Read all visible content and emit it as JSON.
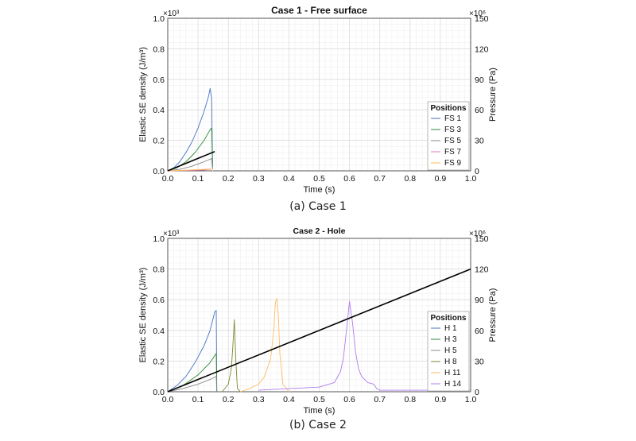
{
  "captions": [
    "(a) Case 1",
    "(b) Case 2"
  ],
  "chart_data": [
    {
      "type": "line",
      "title": "Case 1 - Free surface",
      "xlabel": "Time (s)",
      "ylabel": "Elastic SE density (J/m³)",
      "y2label": "Pressure (Pa)",
      "xlim": [
        0,
        1
      ],
      "ylim": [
        0,
        1
      ],
      "y2lim": [
        0,
        150
      ],
      "xticks": [
        "0.0",
        "0.1",
        "0.2",
        "0.3",
        "0.4",
        "0.5",
        "0.6",
        "0.7",
        "0.8",
        "0.9",
        "1.0"
      ],
      "yticks": [
        "0.0",
        "0.2",
        "0.4",
        "0.6",
        "0.8",
        "1.0"
      ],
      "y2ticks": [
        "0",
        "30",
        "60",
        "90",
        "120",
        "150"
      ],
      "y_multiplier": "×10³",
      "y2_multiplier": "×10⁶",
      "grid": true,
      "legend": {
        "title": "Positions",
        "placement": "right"
      },
      "series": [
        {
          "name": "FS 1",
          "color": "#4472c4",
          "x": [
            0,
            0.02,
            0.04,
            0.06,
            0.08,
            0.1,
            0.12,
            0.135,
            0.14,
            0.145,
            0.148
          ],
          "y": [
            0,
            0.02,
            0.06,
            0.12,
            0.19,
            0.28,
            0.39,
            0.49,
            0.54,
            0.48,
            0.03
          ]
        },
        {
          "name": "FS 3",
          "color": "#2e8b3a",
          "x": [
            0,
            0.03,
            0.06,
            0.09,
            0.12,
            0.14,
            0.145,
            0.148
          ],
          "y": [
            0,
            0.02,
            0.06,
            0.12,
            0.2,
            0.27,
            0.28,
            0.02
          ]
        },
        {
          "name": "FS 5",
          "color": "#888888",
          "x": [
            0,
            0.04,
            0.08,
            0.12,
            0.145,
            0.148
          ],
          "y": [
            0,
            0.01,
            0.03,
            0.06,
            0.08,
            0.01
          ]
        },
        {
          "name": "FS 7",
          "color": "#e377c2",
          "x": [
            0,
            0.12,
            0.14,
            0.148
          ],
          "y": [
            0,
            0.005,
            0.012,
            0.0
          ]
        },
        {
          "name": "FS 9",
          "color": "#ffbb55",
          "x": [
            0,
            0.06,
            0.1,
            0.14,
            0.148
          ],
          "y": [
            0,
            0.004,
            0.008,
            0.012,
            0.0
          ]
        },
        {
          "name": "",
          "color": "#000000",
          "axis": "right",
          "x": [
            0,
            0.155
          ],
          "y": [
            0,
            19
          ]
        }
      ]
    },
    {
      "type": "line",
      "title": "Case 2 - Hole",
      "xlabel": "Time (s)",
      "ylabel": "Elastic SE density (J/m³)",
      "y2label": "Pressure (Pa)",
      "xlim": [
        0,
        1
      ],
      "ylim": [
        0,
        1
      ],
      "y2lim": [
        0,
        150
      ],
      "xticks": [
        "0.0",
        "0.1",
        "0.2",
        "0.3",
        "0.4",
        "0.5",
        "0.6",
        "0.7",
        "0.8",
        "0.9",
        "1.0"
      ],
      "yticks": [
        "0.0",
        "0.2",
        "0.4",
        "0.6",
        "0.8",
        "1.0"
      ],
      "y2ticks": [
        "0",
        "30",
        "60",
        "90",
        "120",
        "150"
      ],
      "y_multiplier": "×10³",
      "y2_multiplier": "×10⁶",
      "grid": true,
      "legend": {
        "title": "Positions",
        "placement": "right"
      },
      "series": [
        {
          "name": "H 1",
          "color": "#4472c4",
          "x": [
            0,
            0.03,
            0.06,
            0.09,
            0.12,
            0.14,
            0.155,
            0.16,
            0.162
          ],
          "y": [
            0,
            0.04,
            0.1,
            0.19,
            0.3,
            0.4,
            0.52,
            0.53,
            0.0
          ]
        },
        {
          "name": "H 3",
          "color": "#2e8b3a",
          "x": [
            0,
            0.05,
            0.1,
            0.14,
            0.16,
            0.162
          ],
          "y": [
            0,
            0.04,
            0.11,
            0.19,
            0.25,
            0.0
          ]
        },
        {
          "name": "H 5",
          "color": "#888888",
          "x": [
            0,
            0.05,
            0.1,
            0.14,
            0.16,
            0.162
          ],
          "y": [
            0,
            0.02,
            0.05,
            0.08,
            0.1,
            0.0
          ]
        },
        {
          "name": "H 8",
          "color": "#7a8a30",
          "x": [
            0.18,
            0.2,
            0.21,
            0.215,
            0.22,
            0.225,
            0.23,
            0.24
          ],
          "y": [
            0,
            0.05,
            0.15,
            0.3,
            0.47,
            0.2,
            0.02,
            0
          ]
        },
        {
          "name": "H 11",
          "color": "#ffbb66",
          "x": [
            0.24,
            0.27,
            0.3,
            0.32,
            0.34,
            0.35,
            0.355,
            0.36,
            0.365,
            0.37,
            0.38,
            0.4
          ],
          "y": [
            0,
            0.02,
            0.05,
            0.1,
            0.22,
            0.4,
            0.58,
            0.61,
            0.5,
            0.25,
            0.05,
            0
          ]
        },
        {
          "name": "H 14",
          "color": "#b07cf0",
          "x": [
            0.3,
            0.4,
            0.5,
            0.55,
            0.57,
            0.58,
            0.59,
            0.6,
            0.61,
            0.62,
            0.63,
            0.64,
            0.65,
            0.66,
            0.68,
            0.69,
            0.7,
            0.8,
            1.0
          ],
          "y": [
            0.01,
            0.02,
            0.03,
            0.06,
            0.13,
            0.22,
            0.4,
            0.59,
            0.45,
            0.26,
            0.15,
            0.1,
            0.08,
            0.06,
            0.05,
            0.02,
            0.01,
            0.01,
            0.01
          ]
        },
        {
          "name": "",
          "color": "#000000",
          "axis": "right",
          "x": [
            0,
            1.0
          ],
          "y": [
            0,
            120
          ]
        }
      ]
    }
  ]
}
